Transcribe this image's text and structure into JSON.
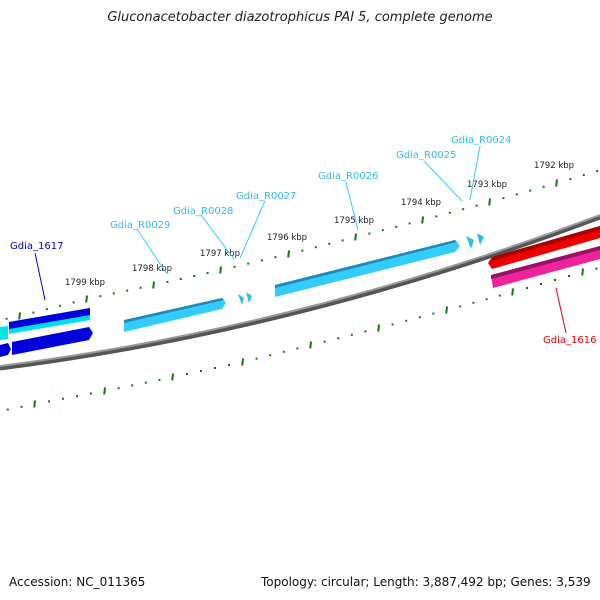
{
  "title": "Gluconacetobacter diazotrophicus PAI 5, complete genome",
  "footer": {
    "accession": "Accession: NC_011365",
    "summary": "Topology: circular; Length: 3,887,492 bp; Genes: 3,539"
  },
  "ticks": [
    "1799 kbp",
    "1798 kbp",
    "1797 kbp",
    "1796 kbp",
    "1795 kbp",
    "1794 kbp",
    "1793 kbp",
    "1792 kbp"
  ],
  "genes": {
    "g1617": "Gdia_1617",
    "r0029": "Gdia_R0029",
    "r0028": "Gdia_R0028",
    "r0027": "Gdia_R0027",
    "r0026": "Gdia_R0026",
    "r0025": "Gdia_R0025",
    "r0024": "Gdia_R0024",
    "g1616": "Gdia_1616"
  },
  "colors": {
    "cds_blue": "#0000dd",
    "trna": "#33ccff",
    "cds_red": "#ee0000",
    "pink": "#ee2299",
    "tick": "#117711",
    "backbone": "#777777"
  }
}
